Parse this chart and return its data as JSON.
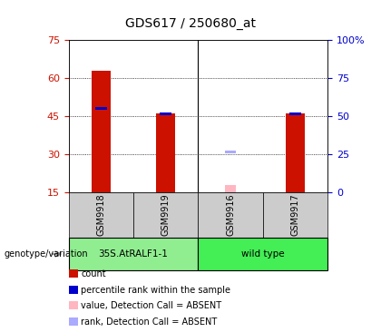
{
  "title": "GDS617 / 250680_at",
  "samples": [
    "GSM9918",
    "GSM9919",
    "GSM9916",
    "GSM9917"
  ],
  "count_values": [
    63,
    46,
    null,
    46
  ],
  "rank_values": [
    48,
    46,
    null,
    46
  ],
  "absent_count_values": [
    null,
    null,
    18,
    null
  ],
  "absent_rank_values": [
    null,
    null,
    31,
    null
  ],
  "ylim_left": [
    15,
    75
  ],
  "ylim_right": [
    0,
    100
  ],
  "yticks_left": [
    15,
    30,
    45,
    60,
    75
  ],
  "yticks_right": [
    0,
    25,
    50,
    75,
    100
  ],
  "ytick_labels_left": [
    "15",
    "30",
    "45",
    "60",
    "75"
  ],
  "ytick_labels_right": [
    "0",
    "25",
    "50",
    "75",
    "100%"
  ],
  "grid_lines": [
    30,
    45,
    60
  ],
  "bar_color_present": "#CC1100",
  "rank_color_present": "#0000CC",
  "bar_color_absent": "#FFB6C1",
  "rank_color_absent": "#AAAAFF",
  "left_tick_color": "#CC1100",
  "right_tick_color": "#0000CC",
  "bar_width": 0.3,
  "group1_label": "35S.AtRALF1-1",
  "group2_label": "wild type",
  "group1_color": "#90EE90",
  "group2_color": "#44EE55",
  "sample_bg_color": "#CCCCCC",
  "legend_items": [
    {
      "label": "count",
      "color": "#CC1100"
    },
    {
      "label": "percentile rank within the sample",
      "color": "#0000CC"
    },
    {
      "label": "value, Detection Call = ABSENT",
      "color": "#FFB6C1"
    },
    {
      "label": "rank, Detection Call = ABSENT",
      "color": "#AAAAFF"
    }
  ]
}
